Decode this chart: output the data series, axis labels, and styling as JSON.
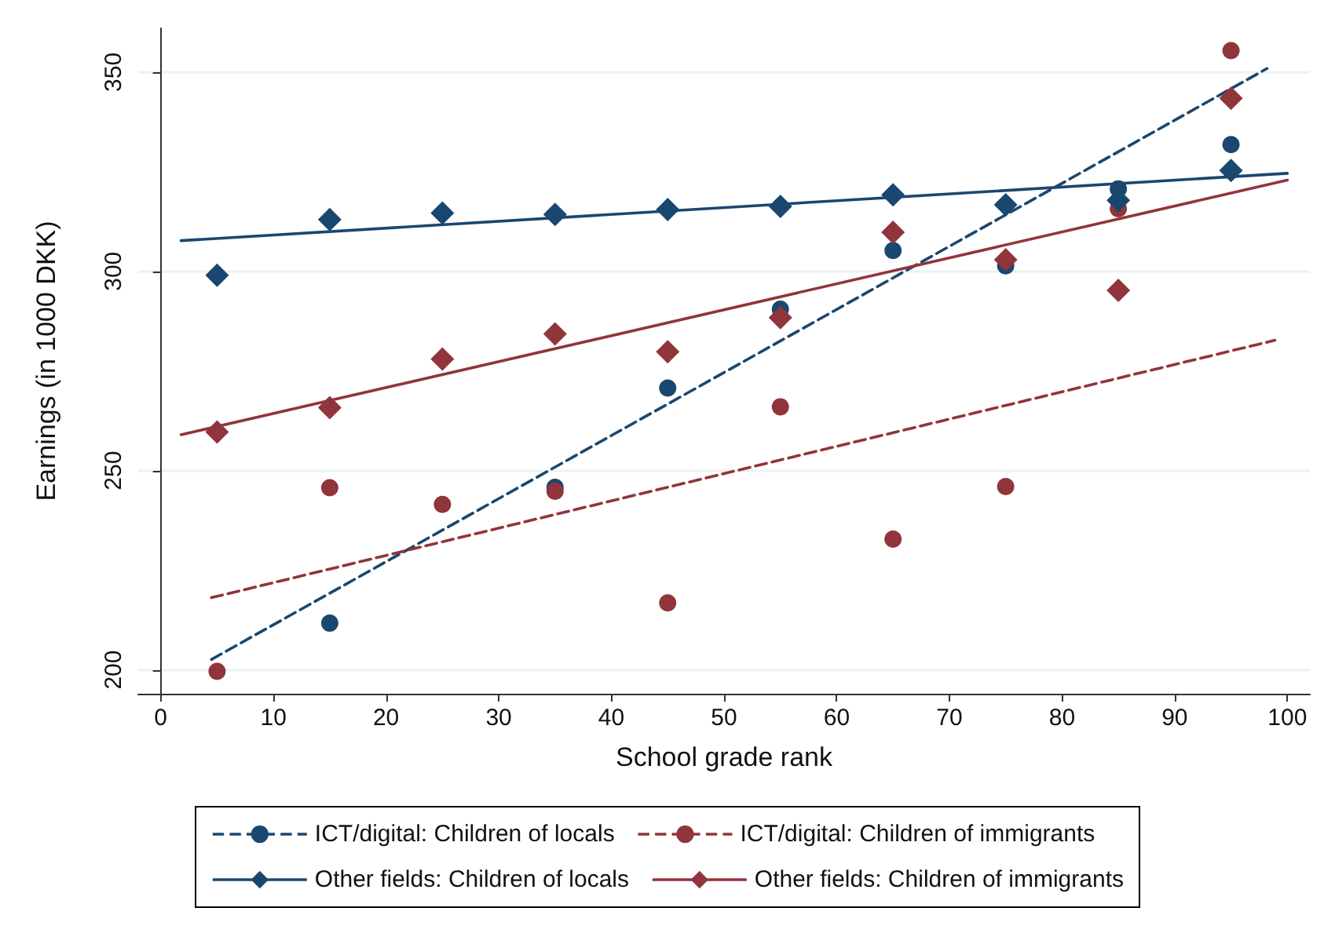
{
  "chart_data": {
    "type": "scatter",
    "xlabel": "School grade rank",
    "ylabel": "Earnings (in 1000 DKK)",
    "xlim": [
      -2,
      102
    ],
    "ylim": [
      194,
      361
    ],
    "xticks": [
      0,
      10,
      20,
      30,
      40,
      50,
      60,
      70,
      80,
      90,
      100
    ],
    "yticks": [
      200,
      250,
      300,
      350
    ],
    "grid": "y",
    "legend": "bottom",
    "series": [
      {
        "type": "line",
        "color": "#1a476f",
        "line_style": "dashed",
        "marker": "none",
        "x": [
          4.5,
          98.2
        ],
        "values": [
          202.6,
          350.9
        ]
      },
      {
        "type": "line",
        "color": "#90353b",
        "line_style": "dashed",
        "marker": "none",
        "x": [
          4.5,
          98.9
        ],
        "values": [
          218.1,
          282.7
        ]
      },
      {
        "type": "line",
        "color": "#1a476f",
        "line_style": "solid",
        "marker": "none",
        "x": [
          1.8,
          100
        ],
        "values": [
          307.7,
          324.6
        ]
      },
      {
        "type": "line",
        "color": "#90353b",
        "line_style": "solid",
        "marker": "none",
        "x": [
          1.8,
          100
        ],
        "values": [
          259,
          322.9
        ]
      },
      {
        "name": "ICT/digital: Children of locals",
        "color": "#1a476f",
        "marker": "circle",
        "line_style": "dashed",
        "x": [
          15,
          35,
          45,
          55,
          65,
          75,
          85,
          95
        ],
        "values": [
          211.7,
          245.8,
          270.7,
          290.5,
          305.2,
          301.4,
          320.7,
          331.8
        ]
      },
      {
        "name": "ICT/digital: Children of immigrants",
        "color": "#90353b",
        "marker": "circle",
        "line_style": "dashed",
        "x": [
          5,
          15,
          25,
          35,
          45,
          55,
          65,
          75,
          85,
          95
        ],
        "values": [
          199.6,
          245.7,
          241.5,
          244.8,
          216.8,
          266,
          232.8,
          246,
          315.7,
          355.4
        ]
      },
      {
        "name": "Other fields: Children of locals",
        "color": "#1a476f",
        "marker": "diamond",
        "line_style": "solid",
        "x": [
          5,
          15,
          25,
          35,
          45,
          55,
          65,
          75,
          85,
          95
        ],
        "values": [
          299,
          313,
          314.6,
          314.3,
          315.5,
          316.3,
          319.2,
          316.7,
          317.8,
          325.3
        ]
      },
      {
        "name": "Other fields: Children of immigrants",
        "color": "#90353b",
        "marker": "diamond",
        "line_style": "solid",
        "x": [
          5,
          15,
          25,
          35,
          45,
          55,
          65,
          75,
          85,
          95
        ],
        "values": [
          259.7,
          265.8,
          278,
          284.3,
          279.8,
          288.4,
          309.8,
          302.9,
          295.2,
          343.4
        ]
      }
    ]
  }
}
